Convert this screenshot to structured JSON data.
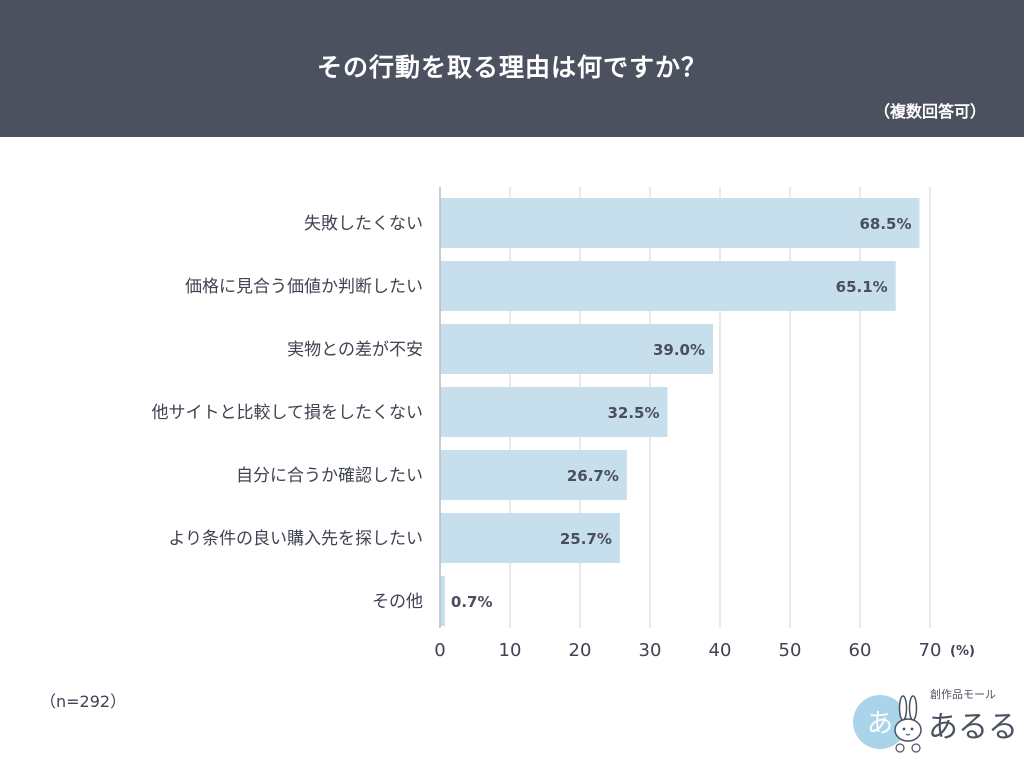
{
  "header": {
    "title": "その行動を取る理由は何ですか？",
    "note": "（複数回答可）"
  },
  "sample": "（n=292）",
  "logo": {
    "subtitle": "創作品モール",
    "name": "あるる",
    "badge": "あ"
  },
  "chart_data": {
    "type": "bar",
    "orientation": "horizontal",
    "categories": [
      "失敗したくない",
      "価格に見合う価値か判断したい",
      "実物との差が不安",
      "他サイトと比較して損をしたくない",
      "自分に合うか確認したい",
      "より条件の良い購入先を探したい",
      "その他"
    ],
    "values": [
      68.5,
      65.1,
      39.0,
      32.5,
      26.7,
      25.7,
      0.7
    ],
    "value_labels": [
      "68.5%",
      "65.1%",
      "39.0%",
      "32.5%",
      "26.7%",
      "25.7%",
      "0.7%"
    ],
    "x_ticks": [
      "0",
      "10",
      "20",
      "30",
      "40",
      "50",
      "60",
      "70"
    ],
    "xlim": [
      0,
      70
    ],
    "unit": "(%)",
    "grid": true,
    "bar_color": "#c7dfed",
    "grid_color": "#d2d4da"
  }
}
